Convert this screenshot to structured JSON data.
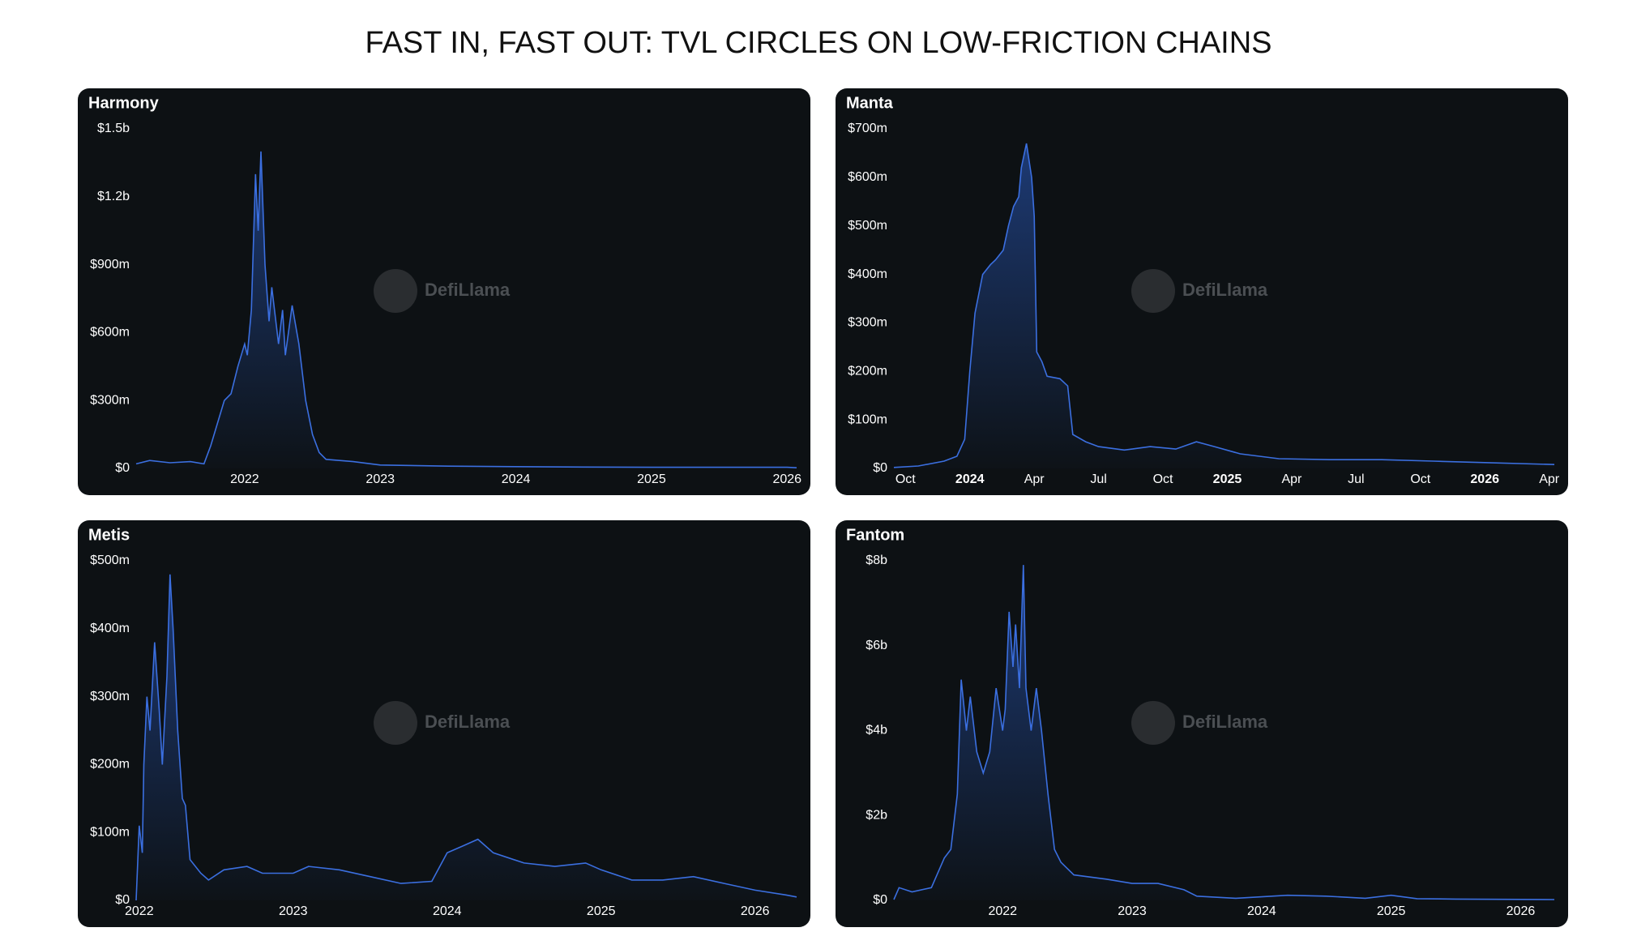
{
  "title": "FAST IN, FAST OUT: TVL CIRCLES ON LOW-FRICTION CHAINS",
  "watermark": "DefiLlama",
  "chart_data": [
    {
      "type": "area",
      "title": "Harmony",
      "color": "#3b6fe0",
      "x": [
        2021.2,
        2021.3,
        2021.45,
        2021.6,
        2021.7,
        2021.75,
        2021.8,
        2021.85,
        2021.9,
        2021.95,
        2022.0,
        2022.02,
        2022.05,
        2022.08,
        2022.1,
        2022.12,
        2022.15,
        2022.18,
        2022.2,
        2022.25,
        2022.28,
        2022.3,
        2022.35,
        2022.4,
        2022.45,
        2022.5,
        2022.55,
        2022.6,
        2022.8,
        2023.0,
        2023.5,
        2024.0,
        2024.5,
        2025.0,
        2025.5,
        2026.0,
        2026.07
      ],
      "values": [
        20000000.0,
        35000000.0,
        25000000.0,
        30000000.0,
        20000000.0,
        100000000.0,
        200000000.0,
        300000000.0,
        330000000.0,
        450000000.0,
        550000000.0,
        500000000.0,
        700000000.0,
        1300000000.0,
        1050000000.0,
        1400000000.0,
        900000000.0,
        650000000.0,
        800000000.0,
        550000000.0,
        700000000.0,
        500000000.0,
        720000000.0,
        550000000.0,
        300000000.0,
        150000000.0,
        70000000.0,
        40000000.0,
        30000000.0,
        15000000.0,
        10000000.0,
        8000000.0,
        6000000.0,
        5000000.0,
        5000000.0,
        5000000.0,
        3000000.0
      ],
      "xlim": [
        2021.2,
        2026.07
      ],
      "xticks": [
        2022,
        2023,
        2024,
        2025,
        2026
      ],
      "ylim": [
        0,
        1500000000.0
      ],
      "yticks": [
        {
          "value": 0,
          "label": "$0"
        },
        {
          "value": 300000000.0,
          "label": "$300m"
        },
        {
          "value": 600000000.0,
          "label": "$600m"
        },
        {
          "value": 900000000.0,
          "label": "$900m"
        },
        {
          "value": 1200000000.0,
          "label": "$1.2b"
        },
        {
          "value": 1500000000.0,
          "label": "$1.5b"
        }
      ]
    },
    {
      "type": "area",
      "title": "Manta",
      "color": "#3b6fe0",
      "x": [
        2023.705,
        2023.8,
        2023.9,
        2023.95,
        2023.98,
        2024.0,
        2024.02,
        2024.05,
        2024.08,
        2024.1,
        2024.13,
        2024.15,
        2024.17,
        2024.19,
        2024.2,
        2024.22,
        2024.24,
        2024.25,
        2024.26,
        2024.28,
        2024.3,
        2024.35,
        2024.38,
        2024.4,
        2024.45,
        2024.5,
        2024.6,
        2024.7,
        2024.8,
        2024.88,
        2024.95,
        2025.05,
        2025.2,
        2025.4,
        2025.6,
        2025.8,
        2026.0,
        2026.27
      ],
      "values": [
        2000000.0,
        5000000.0,
        15000000.0,
        25000000.0,
        60000000.0,
        200000000.0,
        320000000.0,
        400000000.0,
        420000000.0,
        430000000.0,
        450000000.0,
        500000000.0,
        540000000.0,
        560000000.0,
        620000000.0,
        670000000.0,
        600000000.0,
        520000000.0,
        240000000.0,
        220000000.0,
        190000000.0,
        185000000.0,
        170000000.0,
        70000000.0,
        55000000.0,
        45000000.0,
        38000000.0,
        45000000.0,
        40000000.0,
        55000000.0,
        45000000.0,
        30000000.0,
        20000000.0,
        18000000.0,
        18000000.0,
        15000000.0,
        12000000.0,
        8000000.0
      ],
      "xlim": [
        2023.705,
        2026.27
      ],
      "xticks": [
        {
          "value": 2023.75,
          "label": "Oct"
        },
        2024,
        {
          "value": 2024.25,
          "label": "Apr"
        },
        {
          "value": 2024.5,
          "label": "Jul"
        },
        {
          "value": 2024.75,
          "label": "Oct"
        },
        2025,
        {
          "value": 2025.25,
          "label": "Apr"
        },
        {
          "value": 2025.5,
          "label": "Jul"
        },
        {
          "value": 2025.75,
          "label": "Oct"
        },
        2026,
        {
          "value": 2026.25,
          "label": "Apr"
        }
      ],
      "ylim": [
        0,
        700000000.0
      ],
      "yticks": [
        {
          "value": 0,
          "label": "$0"
        },
        {
          "value": 100000000.0,
          "label": "$100m"
        },
        {
          "value": 200000000.0,
          "label": "$200m"
        },
        {
          "value": 300000000.0,
          "label": "$300m"
        },
        {
          "value": 400000000.0,
          "label": "$400m"
        },
        {
          "value": 500000000.0,
          "label": "$500m"
        },
        {
          "value": 600000000.0,
          "label": "$600m"
        },
        {
          "value": 700000000.0,
          "label": "$700m"
        }
      ]
    },
    {
      "type": "area",
      "title": "Metis",
      "color": "#3b6fe0",
      "x": [
        2021.98,
        2022.0,
        2022.02,
        2022.03,
        2022.05,
        2022.07,
        2022.1,
        2022.13,
        2022.15,
        2022.18,
        2022.2,
        2022.22,
        2022.25,
        2022.28,
        2022.3,
        2022.33,
        2022.4,
        2022.45,
        2022.55,
        2022.7,
        2022.8,
        2023.0,
        2023.1,
        2023.3,
        2023.5,
        2023.7,
        2023.9,
        2024.0,
        2024.1,
        2024.2,
        2024.3,
        2024.5,
        2024.7,
        2024.9,
        2025.0,
        2025.2,
        2025.4,
        2025.6,
        2025.8,
        2026.0,
        2026.2,
        2026.27
      ],
      "values": [
        0,
        110000000.0,
        70000000.0,
        200000000.0,
        300000000.0,
        250000000.0,
        380000000.0,
        280000000.0,
        200000000.0,
        330000000.0,
        480000000.0,
        400000000.0,
        250000000.0,
        150000000.0,
        140000000.0,
        60000000.0,
        40000000.0,
        30000000.0,
        45000000.0,
        50000000.0,
        40000000.0,
        40000000.0,
        50000000.0,
        45000000.0,
        35000000.0,
        25000000.0,
        28000000.0,
        70000000.0,
        80000000.0,
        90000000.0,
        70000000.0,
        55000000.0,
        50000000.0,
        55000000.0,
        45000000.0,
        30000000.0,
        30000000.0,
        35000000.0,
        25000000.0,
        15000000.0,
        8000000.0,
        5000000.0
      ],
      "xlim": [
        2021.98,
        2026.27
      ],
      "xticks": [
        2022,
        2023,
        2024,
        2025,
        2026
      ],
      "ylim": [
        0,
        500000000.0
      ],
      "yticks": [
        {
          "value": 0,
          "label": "$0"
        },
        {
          "value": 100000000.0,
          "label": "$100m"
        },
        {
          "value": 200000000.0,
          "label": "$200m"
        },
        {
          "value": 300000000.0,
          "label": "$300m"
        },
        {
          "value": 400000000.0,
          "label": "$400m"
        },
        {
          "value": 500000000.0,
          "label": "$500m"
        }
      ]
    },
    {
      "type": "area",
      "title": "Fantom",
      "color": "#3b6fe0",
      "x": [
        2021.16,
        2021.2,
        2021.3,
        2021.45,
        2021.55,
        2021.6,
        2021.65,
        2021.68,
        2021.72,
        2021.75,
        2021.8,
        2021.85,
        2021.9,
        2021.95,
        2022.0,
        2022.02,
        2022.05,
        2022.08,
        2022.1,
        2022.13,
        2022.16,
        2022.18,
        2022.22,
        2022.26,
        2022.3,
        2022.35,
        2022.4,
        2022.45,
        2022.55,
        2022.8,
        2023.0,
        2023.2,
        2023.4,
        2023.5,
        2023.8,
        2024.2,
        2024.5,
        2024.8,
        2025.0,
        2025.2,
        2025.5,
        2026.26
      ],
      "values": [
        20000000.0,
        300000000.0,
        200000000.0,
        300000000.0,
        1000000000.0,
        1200000000.0,
        2500000000.0,
        5200000000.0,
        4000000000.0,
        4800000000.0,
        3500000000.0,
        3000000000.0,
        3500000000.0,
        5000000000.0,
        4000000000.0,
        4500000000.0,
        6800000000.0,
        5500000000.0,
        6500000000.0,
        5000000000.0,
        7900000000.0,
        5000000000.0,
        4000000000.0,
        5000000000.0,
        4000000000.0,
        2500000000.0,
        1200000000.0,
        900000000.0,
        600000000.0,
        500000000.0,
        400000000.0,
        400000000.0,
        250000000.0,
        100000000.0,
        50000000.0,
        120000000.0,
        100000000.0,
        50000000.0,
        120000000.0,
        40000000.0,
        30000000.0,
        20000000.0
      ],
      "xlim": [
        2021.16,
        2026.26
      ],
      "xticks": [
        2022,
        2023,
        2024,
        2025,
        2026
      ],
      "ylim": [
        0,
        8000000000.0
      ],
      "yticks": [
        {
          "value": 0,
          "label": "$0"
        },
        {
          "value": 2000000000.0,
          "label": "$2b"
        },
        {
          "value": 4000000000.0,
          "label": "$4b"
        },
        {
          "value": 6000000000.0,
          "label": "$6b"
        },
        {
          "value": 8000000000.0,
          "label": "$8b"
        }
      ]
    }
  ]
}
